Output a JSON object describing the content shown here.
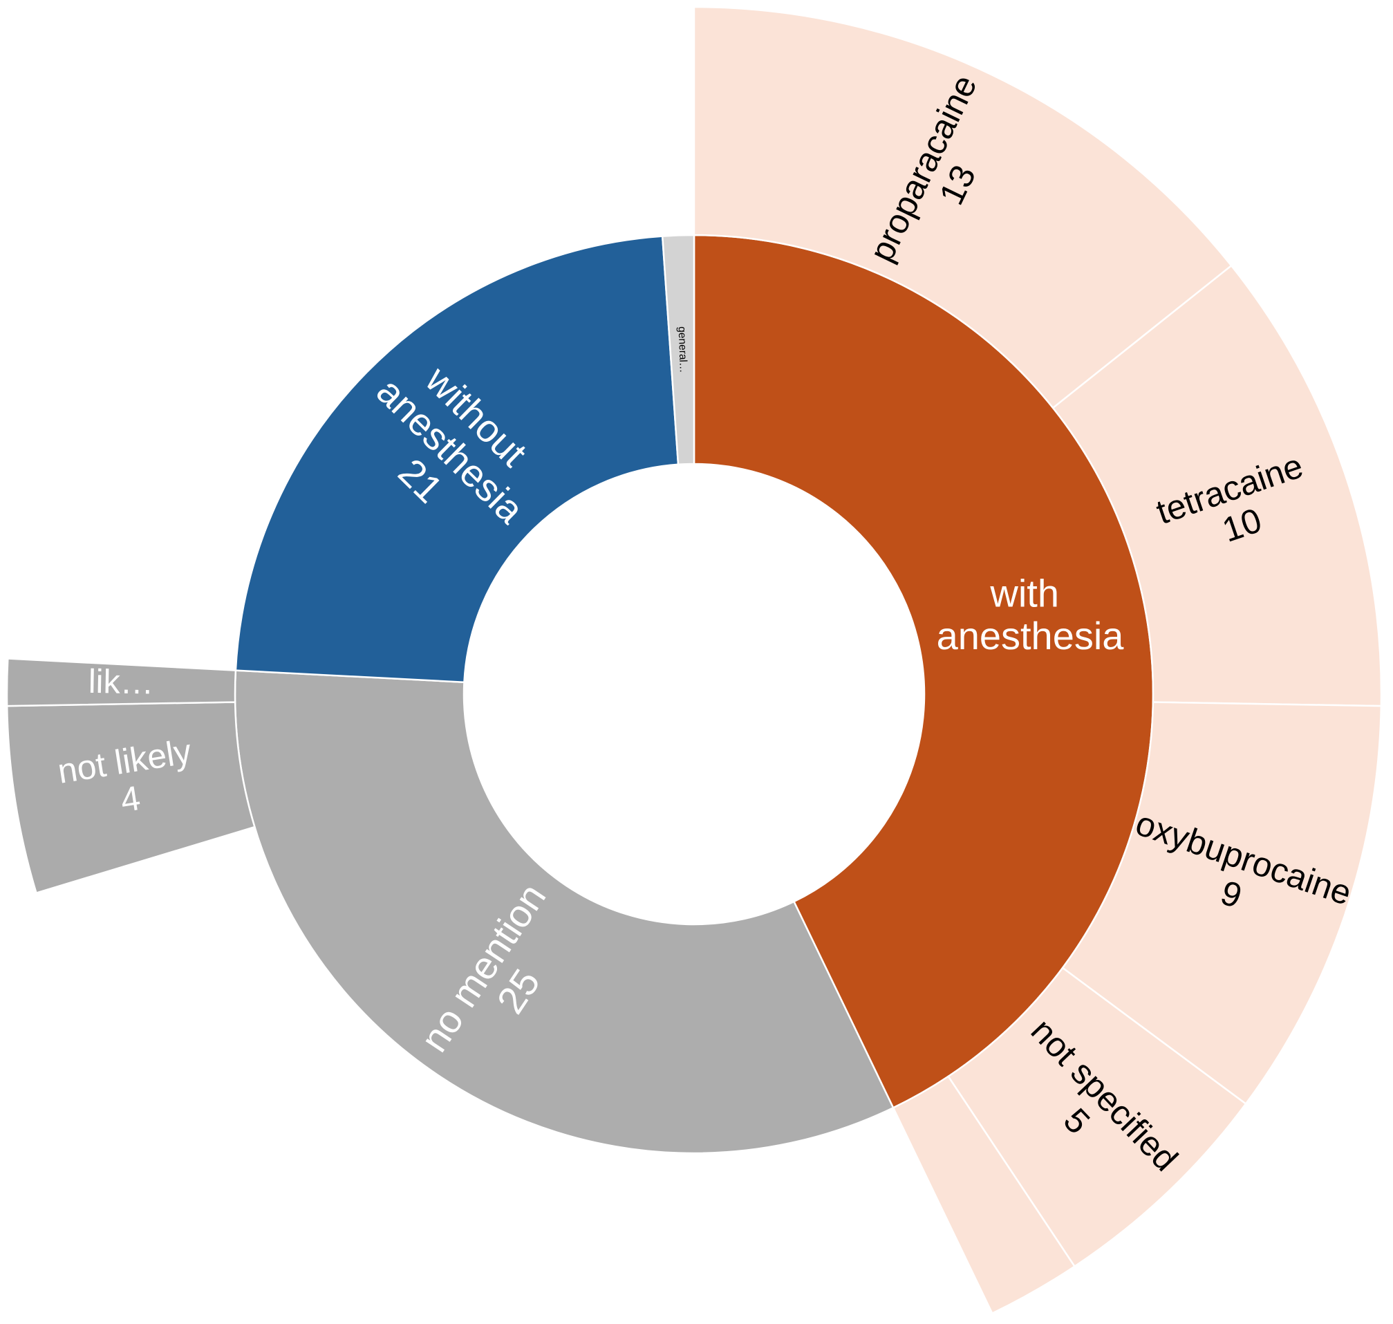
{
  "chart_data": {
    "type": "sunburst",
    "nodes": [
      {
        "label": "with anesthesia",
        "color": "#bf5018",
        "textinfo": "label",
        "children": [
          {
            "label": "proparacaine",
            "value": 13,
            "color": "#fbe3d7",
            "textinfo": "label+value"
          },
          {
            "label": "tetracaine",
            "value": 10,
            "color": "#fbe3d7",
            "textinfo": "label+value"
          },
          {
            "label": "oxybuprocaine",
            "value": 9,
            "color": "#fbe3d7",
            "textinfo": "label+value"
          },
          {
            "label": "not specified",
            "value": 5,
            "color": "#fbe3d7",
            "textinfo": "label+value"
          },
          {
            "label": null,
            "value": 2,
            "color": "#fbe3d7",
            "textinfo": "none"
          }
        ]
      },
      {
        "label": "no mention",
        "value": 25,
        "color": "#adadad",
        "textinfo": "label+value",
        "children": [
          {
            "label": "not likely",
            "value": 4,
            "color": "#ababab",
            "textinfo": "label+value"
          },
          {
            "label": "lik…",
            "value": 1,
            "color": "#ababab",
            "textinfo": "label"
          }
        ]
      },
      {
        "label": "without anesthesia",
        "value": 21,
        "color": "#226099",
        "textinfo": "label+value"
      },
      {
        "label": "general…",
        "value": 1,
        "color": "#d3d3d3",
        "textinfo": "label"
      }
    ]
  }
}
